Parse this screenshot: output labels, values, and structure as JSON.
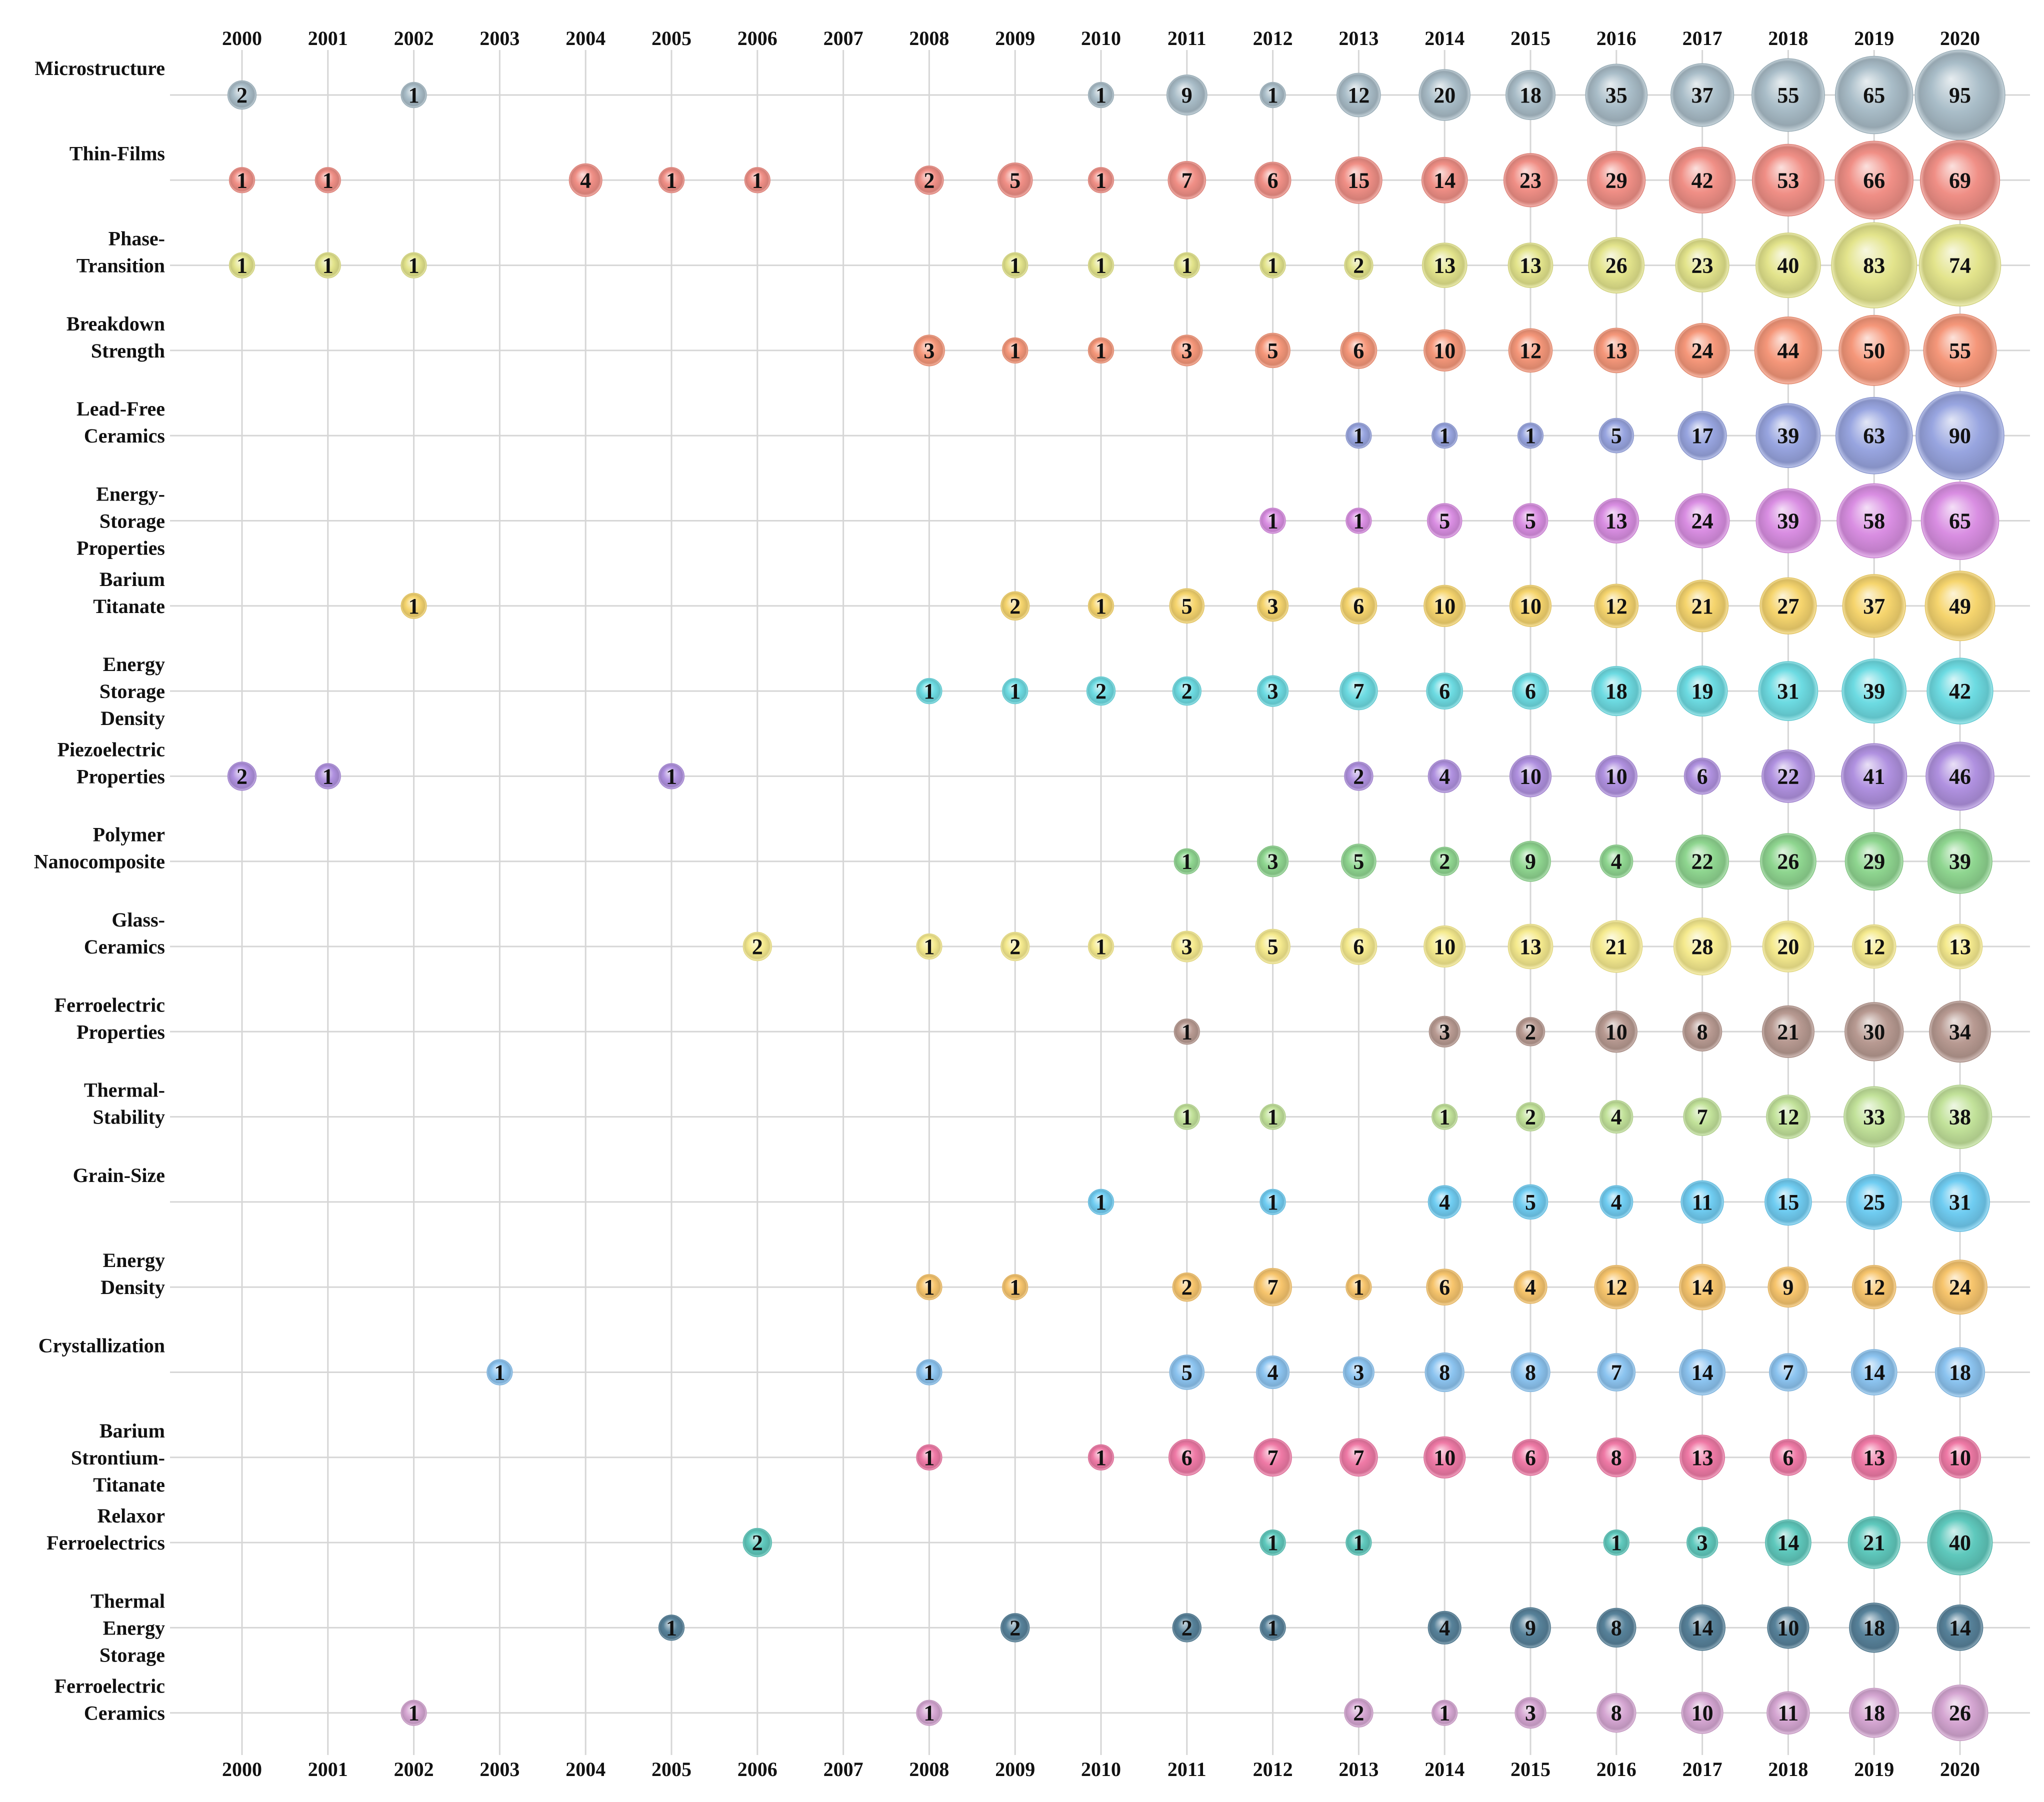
{
  "chart_data": {
    "type": "bubble-matrix",
    "title": "",
    "xlabel": "",
    "ylabel": "",
    "years": [
      "2000",
      "2001",
      "2002",
      "2003",
      "2004",
      "2005",
      "2006",
      "2007",
      "2008",
      "2009",
      "2010",
      "2011",
      "2012",
      "2013",
      "2014",
      "2015",
      "2016",
      "2017",
      "2018",
      "2019",
      "2020"
    ],
    "max_value": 95,
    "grid": true,
    "series": [
      {
        "name": "Microstructure",
        "label_lines": [
          "Microstructure"
        ],
        "color": "#a9bdc8",
        "values": [
          2,
          null,
          1,
          null,
          null,
          null,
          null,
          null,
          null,
          null,
          1,
          9,
          1,
          12,
          20,
          18,
          35,
          37,
          55,
          65,
          95
        ]
      },
      {
        "name": "Thin-Films",
        "label_lines": [
          "Thin-Films"
        ],
        "color": "#f08f86",
        "values": [
          1,
          1,
          null,
          null,
          4,
          1,
          1,
          null,
          2,
          5,
          1,
          7,
          6,
          15,
          14,
          23,
          29,
          42,
          53,
          66,
          69
        ]
      },
      {
        "name": "Phase-Transition",
        "label_lines": [
          "Phase-",
          "Transition"
        ],
        "color": "#e3e48c",
        "values": [
          1,
          1,
          1,
          null,
          null,
          null,
          null,
          null,
          null,
          1,
          1,
          1,
          1,
          2,
          13,
          13,
          26,
          23,
          40,
          83,
          74
        ]
      },
      {
        "name": "Breakdown Strength",
        "label_lines": [
          "Breakdown",
          "Strength"
        ],
        "color": "#f5977a",
        "values": [
          null,
          null,
          null,
          null,
          null,
          null,
          null,
          null,
          3,
          1,
          1,
          3,
          5,
          6,
          10,
          12,
          13,
          24,
          44,
          50,
          55
        ]
      },
      {
        "name": "Lead-Free Ceramics",
        "label_lines": [
          "Lead-Free",
          "Ceramics"
        ],
        "color": "#98a5e0",
        "values": [
          null,
          null,
          null,
          null,
          null,
          null,
          null,
          null,
          null,
          null,
          null,
          null,
          null,
          1,
          1,
          1,
          5,
          17,
          39,
          63,
          90
        ]
      },
      {
        "name": "Energy-Storage Properties",
        "label_lines": [
          "Energy-",
          "Storage",
          "Properties"
        ],
        "color": "#d98ee2",
        "values": [
          null,
          null,
          null,
          null,
          null,
          null,
          null,
          null,
          null,
          null,
          null,
          null,
          1,
          1,
          5,
          5,
          13,
          24,
          39,
          58,
          65
        ]
      },
      {
        "name": "Barium Titanate",
        "label_lines": [
          "Barium",
          "Titanate"
        ],
        "color": "#f6d56e",
        "values": [
          null,
          null,
          1,
          null,
          null,
          null,
          null,
          null,
          null,
          2,
          1,
          5,
          3,
          6,
          10,
          10,
          12,
          21,
          27,
          37,
          49
        ]
      },
      {
        "name": "Energy Storage Density",
        "label_lines": [
          "Energy",
          "Storage",
          "Density"
        ],
        "color": "#6ddbe2",
        "values": [
          null,
          null,
          null,
          null,
          null,
          null,
          null,
          null,
          1,
          1,
          2,
          2,
          3,
          7,
          6,
          6,
          18,
          19,
          31,
          39,
          42
        ]
      },
      {
        "name": "Piezoelectric Properties",
        "label_lines": [
          "Piezoelectric",
          "Properties"
        ],
        "color": "#b091e0",
        "values": [
          2,
          1,
          null,
          null,
          null,
          1,
          null,
          null,
          null,
          null,
          null,
          null,
          null,
          2,
          4,
          10,
          10,
          6,
          22,
          41,
          46
        ]
      },
      {
        "name": "Polymer Nanocomposite",
        "label_lines": [
          "Polymer",
          "Nanocomposite"
        ],
        "color": "#8fd690",
        "values": [
          null,
          null,
          null,
          null,
          null,
          null,
          null,
          null,
          null,
          null,
          null,
          1,
          3,
          5,
          2,
          9,
          4,
          22,
          26,
          29,
          39
        ]
      },
      {
        "name": "Glass-Ceramics",
        "label_lines": [
          "Glass-",
          "Ceramics"
        ],
        "color": "#f5ea8e",
        "values": [
          null,
          null,
          null,
          null,
          null,
          null,
          2,
          null,
          1,
          2,
          1,
          3,
          5,
          6,
          10,
          13,
          21,
          28,
          20,
          12,
          13
        ]
      },
      {
        "name": "Ferroelectric Properties",
        "label_lines": [
          "Ferroelectric",
          "Properties"
        ],
        "color": "#b89a92",
        "values": [
          null,
          null,
          null,
          null,
          null,
          null,
          null,
          null,
          null,
          null,
          null,
          1,
          null,
          null,
          3,
          2,
          10,
          8,
          21,
          30,
          34
        ]
      },
      {
        "name": "Thermal-Stability",
        "label_lines": [
          "Thermal-",
          "Stability"
        ],
        "color": "#c2e29a",
        "values": [
          null,
          null,
          null,
          null,
          null,
          null,
          null,
          null,
          null,
          null,
          null,
          1,
          1,
          null,
          1,
          2,
          4,
          7,
          12,
          33,
          38
        ]
      },
      {
        "name": "Grain-Size",
        "label_lines": [
          "Grain-Size"
        ],
        "color": "#70cdf2",
        "values": [
          null,
          null,
          null,
          null,
          null,
          null,
          null,
          null,
          null,
          null,
          1,
          null,
          1,
          null,
          4,
          5,
          4,
          11,
          15,
          25,
          31
        ]
      },
      {
        "name": "Energy Density",
        "label_lines": [
          "Energy",
          "Density"
        ],
        "color": "#f7c56d",
        "values": [
          null,
          null,
          null,
          null,
          null,
          null,
          null,
          null,
          1,
          1,
          null,
          2,
          7,
          1,
          6,
          4,
          12,
          14,
          9,
          12,
          24
        ]
      },
      {
        "name": "Crystallization",
        "label_lines": [
          "Crystallization"
        ],
        "color": "#8cc4f0",
        "values": [
          null,
          null,
          null,
          1,
          null,
          null,
          null,
          null,
          1,
          null,
          null,
          5,
          4,
          3,
          8,
          8,
          7,
          14,
          7,
          14,
          18
        ]
      },
      {
        "name": "Barium Strontium-Titanate",
        "label_lines": [
          "Barium",
          "Strontium-",
          "Titanate"
        ],
        "color": "#ef7aa6",
        "values": [
          null,
          null,
          null,
          null,
          null,
          null,
          null,
          null,
          1,
          null,
          1,
          6,
          7,
          7,
          10,
          6,
          8,
          13,
          6,
          13,
          10
        ]
      },
      {
        "name": "Relaxor Ferroelectrics",
        "label_lines": [
          "Relaxor",
          "Ferroelectrics"
        ],
        "color": "#5fc9bd",
        "values": [
          null,
          null,
          null,
          null,
          null,
          null,
          2,
          null,
          null,
          null,
          null,
          null,
          1,
          1,
          null,
          null,
          1,
          3,
          14,
          21,
          40
        ]
      },
      {
        "name": "Thermal Energy Storage",
        "label_lines": [
          "Thermal",
          "Energy",
          "Storage"
        ],
        "color": "#57829a",
        "values": [
          null,
          null,
          null,
          null,
          null,
          1,
          null,
          null,
          null,
          2,
          null,
          2,
          1,
          null,
          4,
          9,
          8,
          14,
          10,
          18,
          14
        ]
      },
      {
        "name": "Ferroelectric Ceramics",
        "label_lines": [
          "Ferroelectric",
          "Ceramics"
        ],
        "color": "#d5a6d2",
        "values": [
          null,
          null,
          1,
          null,
          null,
          null,
          null,
          null,
          1,
          null,
          null,
          null,
          null,
          2,
          1,
          3,
          8,
          10,
          11,
          18,
          26
        ]
      }
    ]
  }
}
